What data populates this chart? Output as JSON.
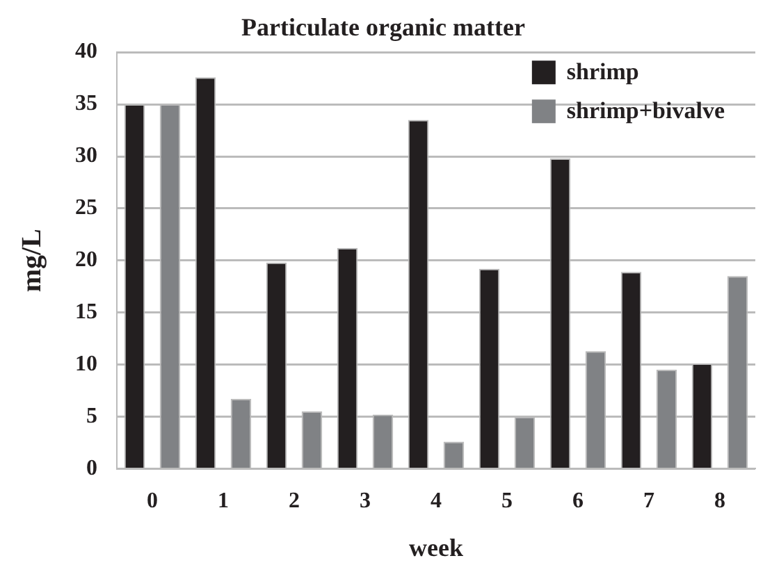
{
  "chart_data": {
    "type": "bar",
    "title": "Particulate organic matter",
    "xlabel": "week",
    "ylabel": "mg/L",
    "categories": [
      "0",
      "1",
      "2",
      "3",
      "4",
      "5",
      "6",
      "7",
      "8"
    ],
    "series": [
      {
        "name": "shrimp",
        "color": "#231f20",
        "values": [
          35,
          37.6,
          19.8,
          21.2,
          33.5,
          19.2,
          29.8,
          18.9,
          10.1
        ]
      },
      {
        "name": "shrimp+bivalve",
        "color": "#808285",
        "values": [
          35,
          6.7,
          5.5,
          5.2,
          2.6,
          5.0,
          11.3,
          9.5,
          18.5
        ]
      }
    ],
    "ylim": [
      0,
      40
    ],
    "yticks": [
      0,
      5,
      10,
      15,
      20,
      25,
      30,
      35,
      40
    ],
    "grid": "y",
    "legend": "top right"
  }
}
